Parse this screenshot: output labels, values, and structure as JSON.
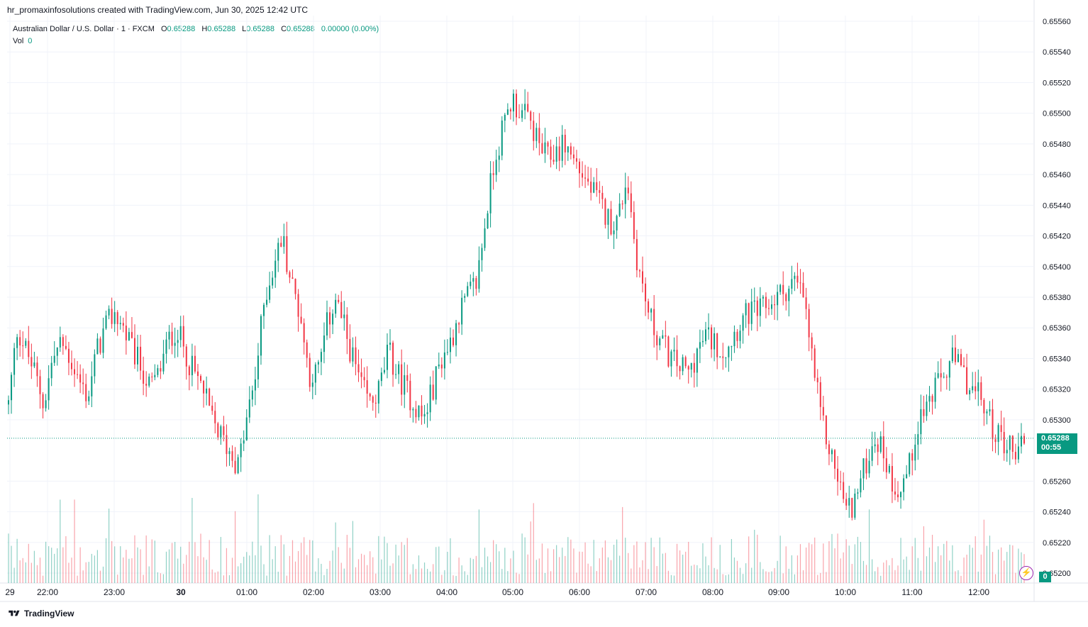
{
  "header": {
    "created_by": "hr_promaxinfosolutions created with TradingView.com, Jun 30, 2025 12:42 UTC"
  },
  "legend": {
    "symbol": "Australian Dollar / U.S. Dollar · 1 · FXCM",
    "open_label": "O",
    "open": "0.65288",
    "high_label": "H",
    "high": "0.65288",
    "low_label": "L",
    "low": "0.65288",
    "close_label": "C",
    "close": "0.65288",
    "change": "0.00000 (0.00%)",
    "vol_label": "Vol",
    "vol": "0"
  },
  "price_tag": {
    "price": "0.65288",
    "countdown": "00:55"
  },
  "vol_tag": "0",
  "footer": {
    "brand": "TradingView"
  },
  "colors": {
    "up": "#089981",
    "down": "#f23645",
    "grid": "#f0f3fa",
    "axis_text": "#131722"
  },
  "chart_data": {
    "type": "candlestick",
    "title": "Australian Dollar / U.S. Dollar · 1 · FXCM",
    "ylim": [
      0.65195,
      0.6556
    ],
    "y_ticks": [
      "0.65200",
      "0.65220",
      "0.65240",
      "0.65260",
      "0.65300",
      "0.65320",
      "0.65340",
      "0.65360",
      "0.65380",
      "0.65400",
      "0.65420",
      "0.65440",
      "0.65460",
      "0.65480",
      "0.65500",
      "0.65520",
      "0.65540",
      "0.65560"
    ],
    "x_ticks": [
      "29",
      "22:00",
      "23:00",
      "30",
      "01:00",
      "02:00",
      "03:00",
      "04:00",
      "05:00",
      "06:00",
      "07:00",
      "08:00",
      "09:00",
      "10:00",
      "11:00",
      "12:00"
    ],
    "current_price": 0.65288,
    "grid": true,
    "price_path": [
      [
        0.6531,
        0.6536,
        0.65345,
        0.6533,
        0.6531,
        0.6534,
        0.6535,
        0.6534,
        0.65325,
        0.65315,
        0.65345,
        0.6536,
        0.6537,
        0.6536,
        0.65345,
        0.65335,
        0.6532,
        0.6533,
        0.6535,
        0.6536,
        0.65345,
        0.6533,
        0.6532,
        0.653,
        0.6529,
        0.6528
      ],
      [
        0.6527,
        0.653,
        0.6533,
        0.6538,
        0.654,
        0.6542,
        0.6539,
        0.6537,
        0.6533,
        0.6533,
        0.6536,
        0.6538,
        0.6536,
        0.6534,
        0.6532,
        0.6531,
        0.6532,
        0.65345,
        0.6533,
        0.6532,
        0.6531,
        0.653,
        0.6532,
        0.6534,
        0.6535,
        0.6537
      ],
      [
        0.6538,
        0.6539,
        0.6543,
        0.6547,
        0.6549,
        0.6551,
        0.655,
        0.65495,
        0.6548,
        0.6547,
        0.65475,
        0.6548,
        0.6547,
        0.6546,
        0.6545,
        0.6544,
        0.6543,
        0.6543,
        0.6546,
        0.6541,
        0.6538,
        0.6536,
        0.6535,
        0.6534,
        0.65335,
        0.6533
      ],
      [
        0.65345,
        0.65355,
        0.6535,
        0.65345,
        0.65355,
        0.65365,
        0.6537,
        0.6537,
        0.65375,
        0.6538,
        0.65385,
        0.6539,
        0.6538,
        0.6534,
        0.653,
        0.6528,
        0.6526,
        0.6524,
        0.6525,
        0.6527,
        0.6529,
        0.6528,
        0.6526,
        0.65255,
        0.6527,
        0.653
      ],
      [
        0.6531,
        0.6532,
        0.6533,
        0.6534,
        0.6533,
        0.6532,
        0.65315,
        0.653,
        0.6529,
        0.65285,
        0.6528,
        0.65288
      ]
    ]
  }
}
